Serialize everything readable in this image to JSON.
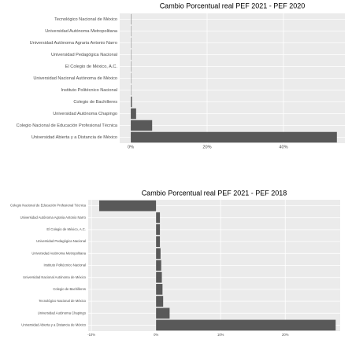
{
  "chart_data": [
    {
      "type": "barh",
      "title": "Cambio Porcentual real PEF  2021 - PEF  2020",
      "categories": [
        "Tecnológico Nacional de México",
        "Universidad Autónoma Metropolitana",
        "Universidad Autónoma Agraria Antonio Narro",
        "Universidad Pedagógica Nacional",
        "El Colegio de México, A.C.",
        "Universidad Nacional Autónoma de México",
        "Instituto Politécnico Nacional",
        "Colegio de Bachilleres",
        "Universidad Autónoma Chapingo",
        "Colegio Nacional de Educación Profesional Técnica",
        "Universidad Abierta y a Distancia de México"
      ],
      "values": [
        0.1,
        0,
        0,
        0,
        0,
        0,
        0,
        0.3,
        1.4,
        5.6,
        54
      ],
      "color": "#595959",
      "xlim": [
        -2.9,
        56.1
      ],
      "xticks": [
        {
          "value": 0,
          "label": "0%"
        },
        {
          "value": 20,
          "label": "20%"
        },
        {
          "value": 40,
          "label": "40%"
        }
      ],
      "grid": true
    },
    {
      "type": "barh",
      "title": "Cambio Porcentual real PEF  2021 - PEF  2018",
      "categories": [
        "Colegio Nacional de Educación Profesional Técnica",
        "Universidad Autónoma Agraria Antonio Narro",
        "El Colegio de México, A.C.",
        "Universidad Pedagógica Nacional",
        "Universidad Autónoma Metropolitana",
        "Instituto Politécnico Nacional",
        "Universidad Nacional Autónoma de México",
        "Colegio de Bachilleres",
        "Tecnológico Nacional de México",
        "Universidad Autónoma Chapingo",
        "Universidad Abierta y a Distancia de México"
      ],
      "values": [
        -8.8,
        0.6,
        0.6,
        0.6,
        0.7,
        0.8,
        0.9,
        1.0,
        1.1,
        2.1,
        27.8
      ],
      "color": "#595959",
      "xlim": [
        -10.5,
        28.5
      ],
      "xticks": [
        {
          "value": -10,
          "label": "-10%"
        },
        {
          "value": 0,
          "label": "0%"
        },
        {
          "value": 10,
          "label": "10%"
        },
        {
          "value": 20,
          "label": "20%"
        }
      ],
      "grid": true
    }
  ]
}
